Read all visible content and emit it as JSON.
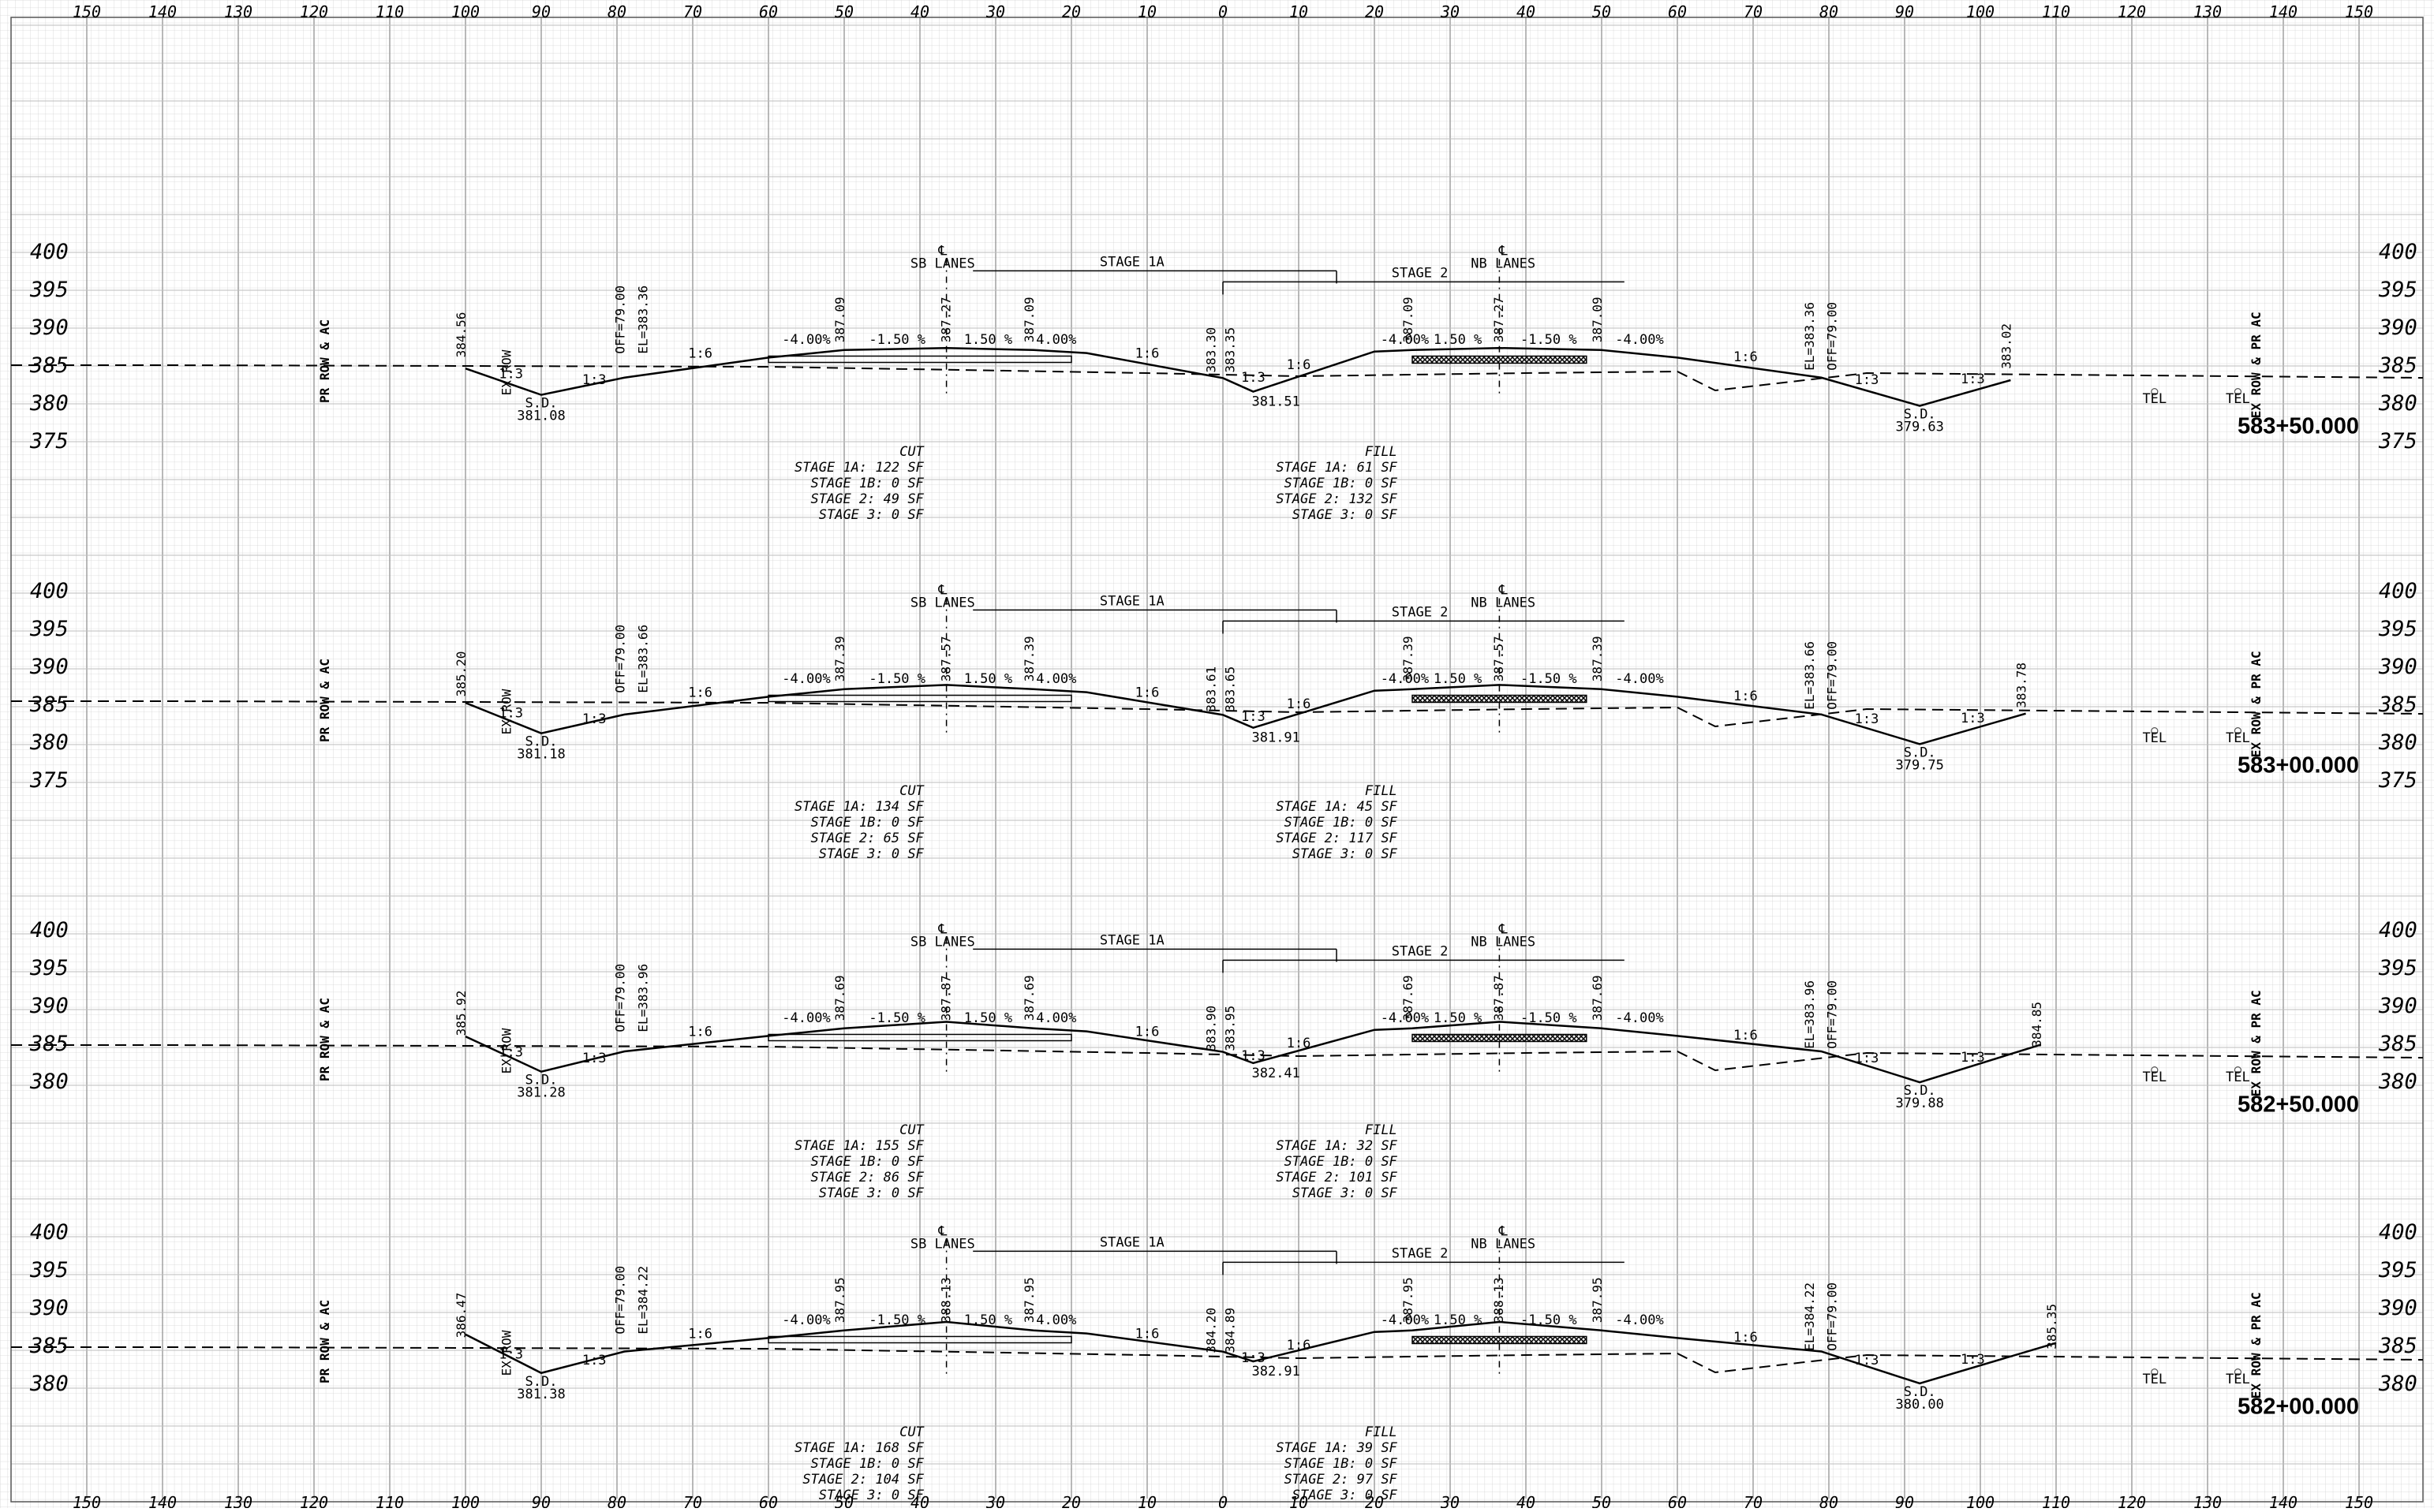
{
  "offset_ticks": [
    "150",
    "140",
    "130",
    "120",
    "110",
    "100",
    "90",
    "80",
    "70",
    "60",
    "50",
    "40",
    "30",
    "20",
    "10",
    "0",
    "10",
    "20",
    "30",
    "40",
    "50",
    "60",
    "70",
    "80",
    "90",
    "100",
    "110",
    "120",
    "130",
    "140",
    "150"
  ],
  "sections": [
    {
      "station": "583+50.000",
      "elevations": [
        "400",
        "395",
        "390",
        "385",
        "380",
        "375"
      ],
      "left_points": {
        "edge": "384.56",
        "ditch_bottom": "381.08",
        "el": "EL=383.36",
        "off": "OFF=79.00"
      },
      "center_points": {
        "sb_edge": "387.09",
        "sb_cl": "387.27",
        "sb_edge2": "387.09",
        "median_a": "383.30",
        "median_b": "383.35",
        "median_low": "381.51",
        "nb_edge": "387.09",
        "nb_cl": "387.27",
        "nb_edge2": "387.09"
      },
      "right_points": {
        "el": "EL=383.36",
        "off": "OFF=79.00",
        "ditch_bottom": "379.63",
        "edge": "383.02"
      },
      "cut": [
        "CUT",
        "STAGE 1A: 122 SF",
        "STAGE 1B: 0 SF",
        "STAGE 2: 49 SF",
        "STAGE 3: 0 SF"
      ],
      "fill": [
        "FILL",
        "STAGE 1A: 61 SF",
        "STAGE 1B: 0 SF",
        "STAGE 2: 132 SF",
        "STAGE 3: 0 SF"
      ]
    },
    {
      "station": "583+00.000",
      "elevations": [
        "400",
        "395",
        "390",
        "385",
        "380",
        "375"
      ],
      "left_points": {
        "edge": "385.20",
        "ditch_bottom": "381.18",
        "el": "EL=383.66",
        "off": "OFF=79.00"
      },
      "center_points": {
        "sb_edge": "387.39",
        "sb_cl": "387.57",
        "sb_edge2": "387.39",
        "median_a": "383.61",
        "median_b": "383.65",
        "median_low": "381.91",
        "nb_edge": "387.39",
        "nb_cl": "387.57",
        "nb_edge2": "387.39"
      },
      "right_points": {
        "el": "EL=383.66",
        "off": "OFF=79.00",
        "ditch_bottom": "379.75",
        "edge": "383.78"
      },
      "cut": [
        "CUT",
        "STAGE 1A: 134 SF",
        "STAGE 1B: 0 SF",
        "STAGE 2: 65 SF",
        "STAGE 3: 0 SF"
      ],
      "fill": [
        "FILL",
        "STAGE 1A: 45 SF",
        "STAGE 1B: 0 SF",
        "STAGE 2: 117 SF",
        "STAGE 3: 0 SF"
      ]
    },
    {
      "station": "582+50.000",
      "elevations": [
        "400",
        "395",
        "390",
        "385",
        "380"
      ],
      "left_points": {
        "edge": "385.92",
        "ditch_bottom": "381.28",
        "el": "EL=383.96",
        "off": "OFF=79.00"
      },
      "center_points": {
        "sb_edge": "387.69",
        "sb_cl": "387.87",
        "sb_edge2": "387.69",
        "median_a": "383.90",
        "median_b": "383.95",
        "median_low": "382.41",
        "nb_edge": "387.69",
        "nb_cl": "387.87",
        "nb_edge2": "387.69"
      },
      "right_points": {
        "el": "EL=383.96",
        "off": "OFF=79.00",
        "ditch_bottom": "379.88",
        "edge": "384.85"
      },
      "cut": [
        "CUT",
        "STAGE 1A: 155 SF",
        "STAGE 1B: 0 SF",
        "STAGE 2: 86 SF",
        "STAGE 3: 0 SF"
      ],
      "fill": [
        "FILL",
        "STAGE 1A: 32 SF",
        "STAGE 1B: 0 SF",
        "STAGE 2: 101 SF",
        "STAGE 3: 0 SF"
      ]
    },
    {
      "station": "582+00.000",
      "elevations": [
        "400",
        "395",
        "390",
        "385",
        "380"
      ],
      "left_points": {
        "edge": "386.47",
        "ditch_bottom": "381.38",
        "el": "EL=384.22",
        "off": "OFF=79.00"
      },
      "center_points": {
        "sb_edge": "387.95",
        "sb_cl": "388.13",
        "sb_edge2": "387.95",
        "median_a": "384.20",
        "median_b": "384.89",
        "median_low": "382.91",
        "nb_edge": "387.95",
        "nb_cl": "388.13",
        "nb_edge2": "387.95"
      },
      "right_points": {
        "el": "EL=384.22",
        "off": "OFF=79.00",
        "ditch_bottom": "380.00",
        "edge": "385.35"
      },
      "cut": [
        "CUT",
        "STAGE 1A: 168 SF",
        "STAGE 1B: 0 SF",
        "STAGE 2: 104 SF",
        "STAGE 3: 0 SF"
      ],
      "fill": [
        "FILL",
        "STAGE 1A: 39 SF",
        "STAGE 1B: 0 SF",
        "STAGE 2: 97 SF",
        "STAGE 3: 0 SF"
      ]
    }
  ],
  "labels": {
    "cl_symbol": "℄",
    "sb_lanes": "SB LANES",
    "nb_lanes": "NB LANES",
    "stage_1a": "STAGE 1A",
    "stage_2": "STAGE 2",
    "pr_row": "PR ROW & AC",
    "ex_row": "EX ROW & PR AC",
    "ex_row_short": "EX ROW",
    "sd": "S.D.",
    "tel": "TEL",
    "slope_neg4": "-4.00%",
    "slope_neg150": "-1.50 %",
    "slope_pos150": "1.50 %",
    "slope_pos4": "4.00%",
    "slope_16": "1:6",
    "slope_13": "1:3"
  }
}
